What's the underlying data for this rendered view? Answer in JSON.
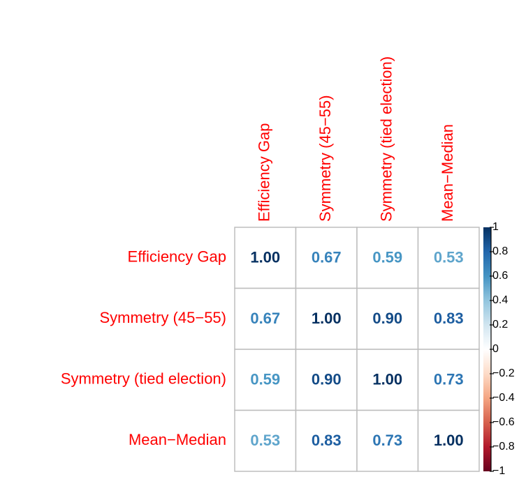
{
  "chart_data": {
    "type": "corrplot",
    "categories": [
      "Efficiency Gap",
      "Symmetry (45−55)",
      "Symmetry (tied election)",
      "Mean−Median"
    ],
    "values": [
      [
        1,
        0.67,
        0.59,
        0.53
      ],
      [
        0.67,
        1,
        0.9,
        0.83
      ],
      [
        0.59,
        0.9,
        1,
        0.73
      ],
      [
        0.53,
        0.83,
        0.73,
        1
      ]
    ],
    "value_labels": [
      [
        "1.00",
        "0.67",
        "0.59",
        "0.53"
      ],
      [
        "0.67",
        "1.00",
        "0.90",
        "0.83"
      ],
      [
        "0.59",
        "0.90",
        "1.00",
        "0.73"
      ],
      [
        "0.53",
        "0.83",
        "0.73",
        "1.00"
      ]
    ],
    "label_color": "#ff0000",
    "colorscale": [
      "#67001F",
      "#B2182B",
      "#D6604D",
      "#F4A582",
      "#FDDBC7",
      "#FFFFFF",
      "#D1E5F0",
      "#92C5DE",
      "#4393C3",
      "#2166AC",
      "#053061"
    ],
    "colorbar_lim": [
      -1,
      1
    ],
    "colorbar_ticks": [
      1,
      0.8,
      0.6,
      0.4,
      0.2,
      0,
      {
        "value": -0.2,
        "label": "−0.2"
      },
      {
        "value": -0.4,
        "label": "−0.4"
      },
      {
        "value": -0.6,
        "label": "−0.6"
      },
      {
        "value": -0.8,
        "label": "−0.8"
      },
      {
        "value": -1,
        "label": "−1"
      }
    ]
  }
}
